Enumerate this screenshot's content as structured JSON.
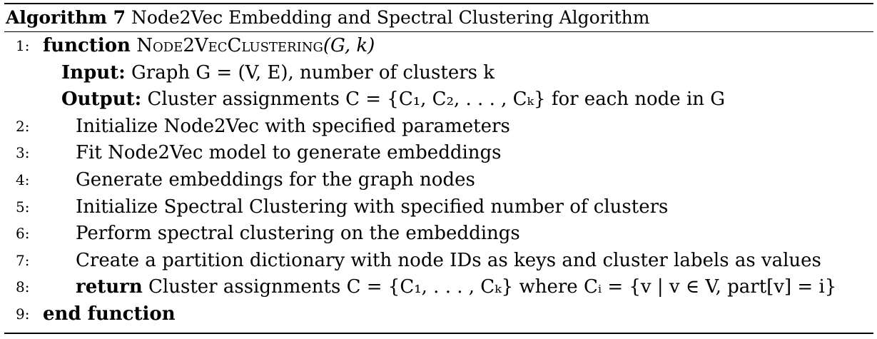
{
  "algorithm": {
    "label": "Algorithm 7",
    "title": "Node2Vec Embedding and Spectral Clustering Algorithm"
  },
  "lines": {
    "l1": {
      "num": "1:",
      "keyword": "function",
      "name": "Node2VecClustering",
      "args": "(G, k)"
    },
    "input": {
      "label": "Input:",
      "text": "Graph G = (V, E), number of clusters k"
    },
    "output": {
      "label": "Output:",
      "text": "Cluster assignments C = {C₁, C₂, . . . , Cₖ} for each node in G"
    },
    "l2": {
      "num": "2:",
      "text": "Initialize Node2Vec with specified parameters"
    },
    "l3": {
      "num": "3:",
      "text": "Fit Node2Vec model to generate embeddings"
    },
    "l4": {
      "num": "4:",
      "text": "Generate embeddings for the graph nodes"
    },
    "l5": {
      "num": "5:",
      "text": "Initialize Spectral Clustering with specified number of clusters"
    },
    "l6": {
      "num": "6:",
      "text": "Perform spectral clustering on the embeddings"
    },
    "l7": {
      "num": "7:",
      "text": "Create a partition dictionary with node IDs as keys and cluster labels as values"
    },
    "l8": {
      "num": "8:",
      "keyword": "return",
      "text": "Cluster assignments C = {C₁, . . . , Cₖ} where Cᵢ = {v | v ∈ V, part[v] = i}"
    },
    "l9": {
      "num": "9:",
      "keyword": "end function"
    }
  }
}
